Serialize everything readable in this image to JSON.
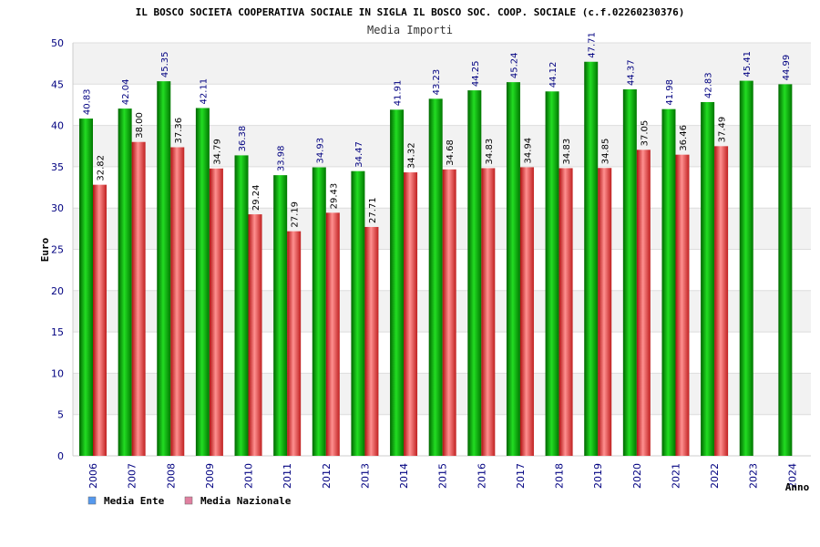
{
  "colors": {
    "ente": "#00aa00",
    "nazionale": "#e03030",
    "legend_ente": "#5599ee",
    "legend_nazionale": "#e080a0",
    "tick_text": "#000080"
  },
  "chart_data": {
    "type": "bar",
    "title": "IL BOSCO SOCIETA COOPERATIVA SOCIALE IN SIGLA IL BOSCO SOC. COOP. SOCIALE (c.f.02260230376)",
    "subtitle": "Media Importi",
    "xlabel": "Anno",
    "ylabel": "Euro",
    "ylim": [
      0,
      50
    ],
    "yticks": [
      0,
      5,
      10,
      15,
      20,
      25,
      30,
      35,
      40,
      45,
      50
    ],
    "grid": true,
    "legend_position": "bottom-left",
    "categories": [
      "2006",
      "2007",
      "2008",
      "2009",
      "2010",
      "2011",
      "2012",
      "2013",
      "2014",
      "2015",
      "2016",
      "2017",
      "2018",
      "2019",
      "2020",
      "2021",
      "2022",
      "2023",
      "2024"
    ],
    "series": [
      {
        "name": "Media Ente",
        "values": [
          40.83,
          42.04,
          45.35,
          42.11,
          36.38,
          33.98,
          34.93,
          34.47,
          41.91,
          43.23,
          44.25,
          45.24,
          44.12,
          47.71,
          44.37,
          41.98,
          42.83,
          45.41,
          44.99
        ],
        "labels": [
          "40.83",
          "42.04",
          "45.35",
          "42.11",
          "36.38",
          "33.98",
          "34.93",
          "34.47",
          "41.91",
          "43.23",
          "44.25",
          "45.24",
          "44.12",
          "47.71",
          "44.37",
          "41.98",
          "42.83",
          "45.41",
          "44.99"
        ]
      },
      {
        "name": "Media Nazionale",
        "values": [
          32.82,
          38.0,
          37.36,
          34.79,
          29.24,
          27.19,
          29.43,
          27.71,
          34.32,
          34.68,
          34.83,
          34.94,
          34.83,
          34.85,
          37.05,
          36.46,
          37.49,
          null,
          null
        ],
        "labels": [
          "32.82",
          "38.00",
          "37.36",
          "34.79",
          "29.24",
          "27.19",
          "29.43",
          "27.71",
          "34.32",
          "34.68",
          "34.83",
          "34.94",
          "34.83",
          "34.85",
          "37.05",
          "36.46",
          "37.49",
          null,
          null
        ]
      }
    ]
  }
}
